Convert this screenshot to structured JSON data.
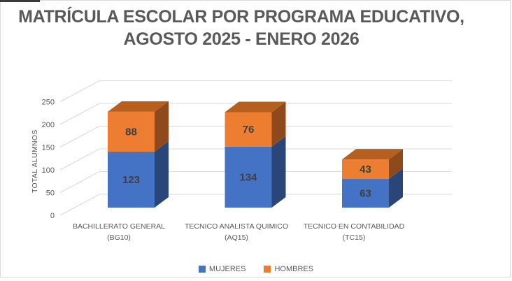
{
  "window": {
    "background": "#ffffff",
    "frame_border_color": "#d9d9d9",
    "artifact_color": "#3a3a3a"
  },
  "chart_data": {
    "type": "bar",
    "subtype": "3d-stacked-column",
    "title": "MATRÍCULA ESCOLAR POR PROGRAMA EDUCATIVO, AGOSTO 2025 - ENERO 2026",
    "title_lines": [
      "MATRÍCULA ESCOLAR POR PROGRAMA EDUCATIVO,",
      "AGOSTO 2025 - ENERO 2026"
    ],
    "categories": [
      {
        "line1": "BACHILLERATO GENERAL",
        "line2": "(BG10)"
      },
      {
        "line1": "TECNICO ANALISTA QUIMICO",
        "line2": "(AQ15)"
      },
      {
        "line1": "TECNICO EN CONTABILIDAD",
        "line2": "(TC15)"
      }
    ],
    "series": [
      {
        "name": "MUJERES",
        "values": [
          123,
          134,
          63
        ],
        "front_color": "#4472C4",
        "side_color": "#2A4577",
        "top_color": "#35589B"
      },
      {
        "name": "HOMBRES",
        "values": [
          88,
          76,
          43
        ],
        "front_color": "#ED7D31",
        "side_color": "#8E4A1C",
        "top_color": "#B5601F"
      }
    ],
    "totals": [
      211,
      210,
      106
    ],
    "ylabel": "TOTAL ALUMNOS",
    "yticks": [
      0,
      50,
      100,
      150,
      200,
      250
    ],
    "ylim": [
      0,
      250
    ],
    "grid": true,
    "gridline_color": "#d9d9d9",
    "legend_position": "bottom",
    "text_color": "#595959",
    "data_label_color": "#3f3f3f"
  }
}
